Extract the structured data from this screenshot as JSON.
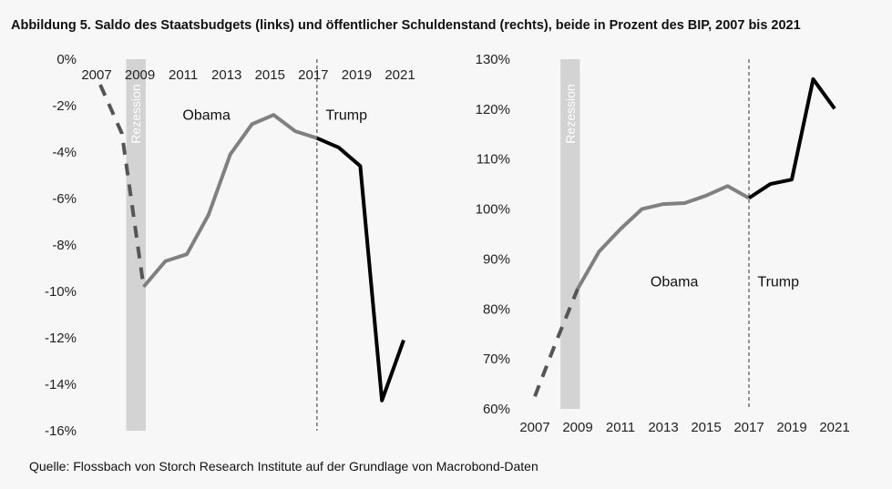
{
  "title": "Abbildung 5. Saldo des Staatsbudgets (links) und öffentlicher Schuldenstand (rechts), beide in Prozent des BIP, 2007 bis 2021",
  "source": "Quelle: Flossbach von Storch Research Institute auf der Grundlage von Macrobond-Daten",
  "colors": {
    "obama": "#808080",
    "trump": "#000000",
    "recession": "#d3d3d3",
    "pre": "#555555"
  },
  "chart_data": [
    {
      "type": "line",
      "title": "",
      "xlabel": "",
      "ylabel": "",
      "xlim": [
        2007,
        2021
      ],
      "ylim": [
        -16,
        0
      ],
      "x_ticks": [
        "2007",
        "2009",
        "2011",
        "2013",
        "2015",
        "2017",
        "2019",
        "2021"
      ],
      "y_ticks": [
        "0%",
        "-2%",
        "-4%",
        "-6%",
        "-8%",
        "-10%",
        "-12%",
        "-14%",
        "-16%"
      ],
      "recession": {
        "label": "Rezession",
        "from": 2008.2,
        "to": 2009.1
      },
      "annotations": [
        {
          "text": "Obama",
          "x": 2010.8,
          "y": -2.6
        },
        {
          "text": "Trump",
          "x": 2017.4,
          "y": -2.6
        }
      ],
      "divider_x": 2017,
      "series": [
        {
          "segment": "pre",
          "x": [
            2007,
            2008,
            2009
          ],
          "values": [
            -1.1,
            -3.2,
            -9.8
          ]
        },
        {
          "segment": "obama",
          "x": [
            2009,
            2010,
            2011,
            2012,
            2013,
            2014,
            2015,
            2016,
            2017
          ],
          "values": [
            -9.8,
            -8.7,
            -8.4,
            -6.7,
            -4.1,
            -2.8,
            -2.4,
            -3.1,
            -3.4
          ]
        },
        {
          "segment": "trump",
          "x": [
            2017,
            2018,
            2019,
            2020,
            2021
          ],
          "values": [
            -3.4,
            -3.8,
            -4.6,
            -14.7,
            -12.1
          ]
        }
      ]
    },
    {
      "type": "line",
      "title": "",
      "xlabel": "",
      "ylabel": "",
      "xlim": [
        2007,
        2021
      ],
      "ylim": [
        60,
        130
      ],
      "x_ticks": [
        "2007",
        "2009",
        "2011",
        "2013",
        "2015",
        "2017",
        "2019",
        "2021"
      ],
      "y_ticks": [
        "130%",
        "120%",
        "110%",
        "100%",
        "90%",
        "80%",
        "70%",
        "60%"
      ],
      "recession": {
        "label": "Rezession",
        "from": 2008.2,
        "to": 2009.1
      },
      "annotations": [
        {
          "text": "Obama",
          "x": 2012.4,
          "y": 84.5
        },
        {
          "text": "Trump",
          "x": 2017.4,
          "y": 84.5
        }
      ],
      "divider_x": 2017,
      "series": [
        {
          "segment": "pre",
          "x": [
            2007,
            2008,
            2009
          ],
          "values": [
            62.5,
            73.5,
            84
          ]
        },
        {
          "segment": "obama",
          "x": [
            2009,
            2010,
            2011,
            2012,
            2013,
            2014,
            2015,
            2016,
            2017
          ],
          "values": [
            84,
            91.5,
            96,
            100,
            101,
            101.2,
            102.7,
            104.6,
            102.2
          ]
        },
        {
          "segment": "trump",
          "x": [
            2017,
            2018,
            2019,
            2020,
            2021
          ],
          "values": [
            102.2,
            105,
            105.9,
            126,
            120.1
          ]
        }
      ]
    }
  ]
}
